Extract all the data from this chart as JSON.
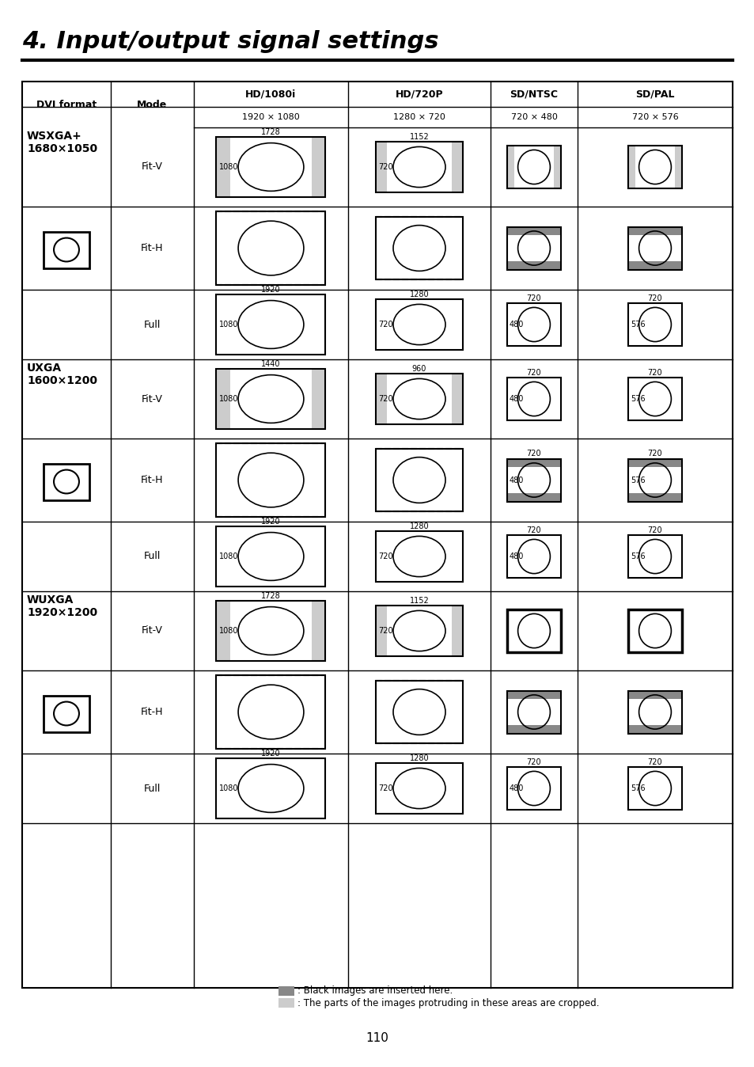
{
  "title": "4. Input/output signal settings",
  "page_number": "110",
  "col_headers": [
    "HD/1080i",
    "HD/720P",
    "SD/NTSC",
    "SD/PAL"
  ],
  "col_subheaders": [
    "1920 × 1080",
    "1280 × 720",
    "720 × 480",
    "720 × 576"
  ],
  "dvi_formats": [
    {
      "name": "WSXGA+",
      "res": "1680×1050"
    },
    {
      "name": "UXGA",
      "res": "1600×1200"
    },
    {
      "name": "WUXGA",
      "res": "1920×1200"
    }
  ],
  "modes": [
    "Fit-V",
    "Fit-H",
    "Full"
  ],
  "gray_dark": "#888888",
  "gray_light": "#cccccc",
  "bg_color": "#ffffff"
}
